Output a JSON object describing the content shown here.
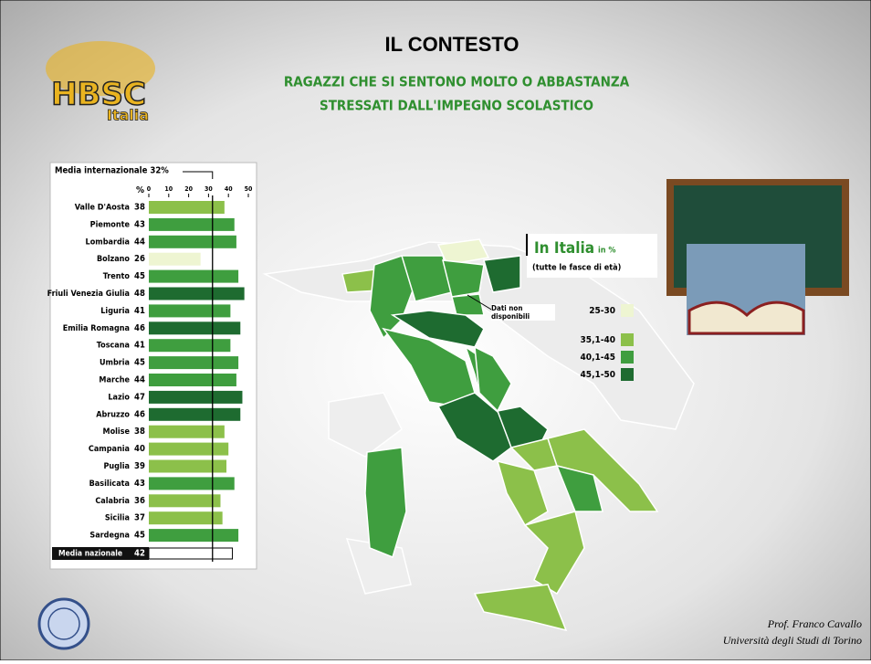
{
  "slide": {
    "title": "IL CONTESTO",
    "subtitle_lines": [
      "RAGAZZI CHE SI SENTONO MOLTO O ABBASTANZA",
      "STRESSATI DALL'IMPEGNO SCOLASTICO"
    ],
    "logo": [
      "HBSC",
      "Italia"
    ],
    "author": [
      "Prof. Franco Cavallo",
      "Università degli Studi di Torino"
    ]
  },
  "map_legend": {
    "title": "In Italia",
    "unit": "in %",
    "note": "(tutte le fasce di età)",
    "missing": "Dati non disponibili",
    "classes": [
      {
        "label": "25-30",
        "color": "#eef5d2"
      },
      {
        "label": "35,1-40",
        "color": "#8cc04a"
      },
      {
        "label": "40,1-45",
        "color": "#3f9e3f"
      },
      {
        "label": "45,1-50",
        "color": "#1e6b30"
      }
    ]
  },
  "chart_data": {
    "type": "bar",
    "orientation": "horizontal",
    "axis_unit": "%",
    "categories": [
      "Valle D'Aosta",
      "Piemonte",
      "Lombardia",
      "Bolzano",
      "Trento",
      "Friuli Venezia Giulia",
      "Liguria",
      "Emilia Romagna",
      "Toscana",
      "Umbria",
      "Marche",
      "Lazio",
      "Abruzzo",
      "Molise",
      "Campania",
      "Puglia",
      "Basilicata",
      "Calabria",
      "Sicilia",
      "Sardegna"
    ],
    "values": [
      38,
      43,
      44,
      26,
      45,
      48,
      41,
      46,
      41,
      45,
      44,
      47,
      46,
      38,
      40,
      39,
      43,
      36,
      37,
      45
    ],
    "colors": [
      "#8cc04a",
      "#3f9e3f",
      "#3f9e3f",
      "#eef5d2",
      "#3f9e3f",
      "#1e6b30",
      "#3f9e3f",
      "#1e6b30",
      "#3f9e3f",
      "#3f9e3f",
      "#3f9e3f",
      "#1e6b30",
      "#1e6b30",
      "#8cc04a",
      "#8cc04a",
      "#8cc04a",
      "#3f9e3f",
      "#8cc04a",
      "#8cc04a",
      "#3f9e3f"
    ],
    "xlim": [
      0,
      50
    ],
    "xticks": [
      0,
      10,
      20,
      30,
      40,
      50
    ],
    "reference": {
      "label": "Media internazionale 32%",
      "value": 32
    },
    "national": {
      "label": "Media nazionale",
      "value": 42
    }
  }
}
